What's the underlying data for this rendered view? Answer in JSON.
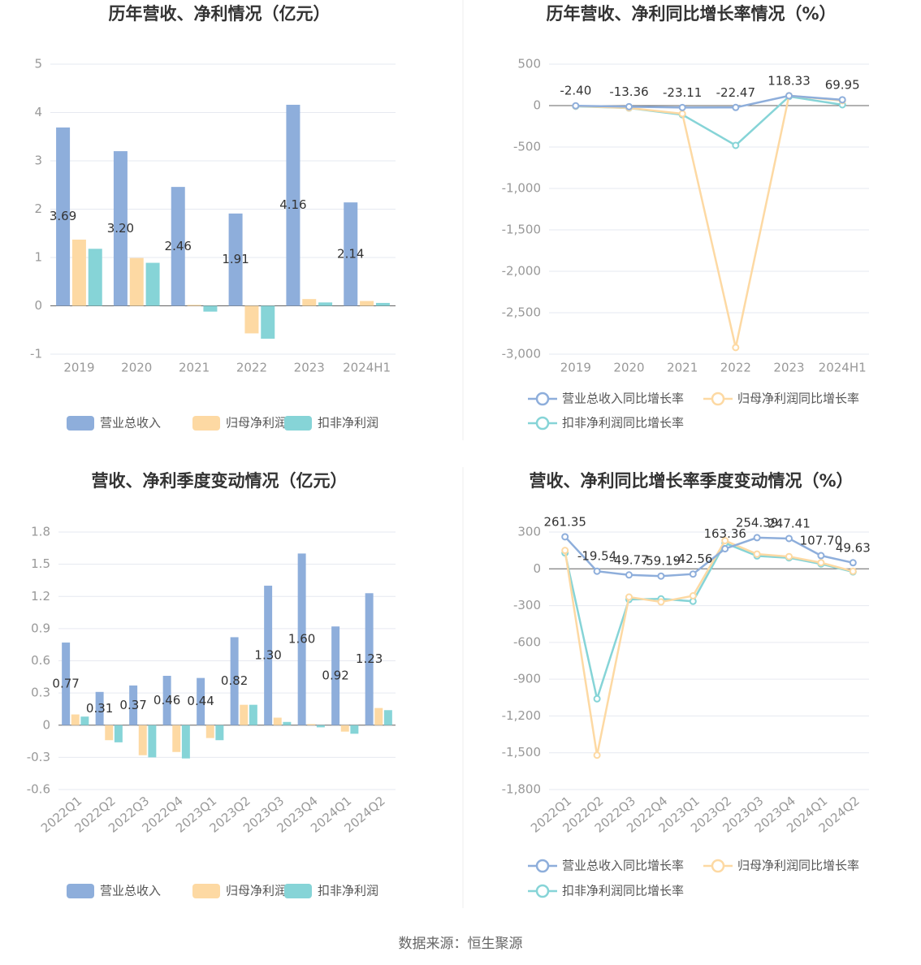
{
  "chart_data": [
    {
      "type": "bar",
      "title": "历年营收、净利情况（亿元）",
      "categories": [
        "2019",
        "2020",
        "2021",
        "2022",
        "2023",
        "2024H1"
      ],
      "series": [
        {
          "name": "营业总收入",
          "color": "#8eaedb",
          "values": [
            3.69,
            3.2,
            2.46,
            1.91,
            4.16,
            2.14
          ],
          "value_labels": [
            "3.69",
            "3.20",
            "2.46",
            "1.91",
            "4.16",
            "2.14"
          ]
        },
        {
          "name": "归母净利润",
          "color": "#fdd9a3",
          "values": [
            1.37,
            0.99,
            0.02,
            -0.57,
            0.14,
            0.1
          ]
        },
        {
          "name": "扣非净利润",
          "color": "#86d4d7",
          "values": [
            1.18,
            0.89,
            -0.12,
            -0.68,
            0.07,
            0.06
          ]
        }
      ],
      "ylim": [
        -1,
        5
      ],
      "yticks": [
        -1,
        0,
        1,
        2,
        3,
        4,
        5
      ],
      "grid": true
    },
    {
      "type": "line",
      "title": "历年营收、净利同比增长率情况（%）",
      "categories": [
        "2019",
        "2020",
        "2021",
        "2022",
        "2023",
        "2024H1"
      ],
      "series": [
        {
          "name": "营业总收入同比增长率",
          "color": "#8eaedb",
          "values": [
            -2.4,
            -13.36,
            -23.11,
            -22.47,
            118.33,
            69.95
          ],
          "value_labels": [
            "-2.40",
            "-13.36",
            "-23.11",
            "-22.47",
            "118.33",
            "69.95"
          ]
        },
        {
          "name": "归母净利润同比增长率",
          "color": "#fdd9a3",
          "values": [
            -5,
            -28,
            -98,
            -2920,
            120,
            60
          ]
        },
        {
          "name": "扣非净利润同比增长率",
          "color": "#86d4d7",
          "values": [
            -8,
            -30,
            -110,
            -480,
            110,
            10
          ]
        }
      ],
      "ylim": [
        -3000,
        500
      ],
      "yticks": [
        {
          "value": -3000,
          "label": "-3,000"
        },
        {
          "value": -2500,
          "label": "-2,500"
        },
        {
          "value": -2000,
          "label": "-2,000"
        },
        {
          "value": -1500,
          "label": "-1,500"
        },
        {
          "value": -1000,
          "label": "-1,000"
        },
        -500,
        0,
        500
      ],
      "grid": true
    },
    {
      "type": "bar",
      "title": "营收、净利季度变动情况（亿元）",
      "categories": [
        "2022Q1",
        "2022Q2",
        "2022Q3",
        "2022Q4",
        "2023Q1",
        "2023Q2",
        "2023Q3",
        "2023Q4",
        "2024Q1",
        "2024Q2"
      ],
      "series": [
        {
          "name": "营业总收入",
          "color": "#8eaedb",
          "values": [
            0.77,
            0.31,
            0.37,
            0.46,
            0.44,
            0.82,
            1.3,
            1.6,
            0.92,
            1.23
          ],
          "value_labels": [
            "0.77",
            "0.31",
            "0.37",
            "0.46",
            "0.44",
            "0.82",
            "1.30",
            "1.60",
            "0.92",
            "1.23"
          ]
        },
        {
          "name": "归母净利润",
          "color": "#fdd9a3",
          "values": [
            0.1,
            -0.14,
            -0.28,
            -0.25,
            -0.12,
            0.19,
            0.07,
            0.01,
            -0.06,
            0.16
          ]
        },
        {
          "name": "扣非净利润",
          "color": "#86d4d7",
          "values": [
            0.08,
            -0.16,
            -0.3,
            -0.31,
            -0.14,
            0.19,
            0.03,
            -0.02,
            -0.08,
            0.14
          ]
        }
      ],
      "ylim": [
        -0.6,
        1.8
      ],
      "yticks": [
        -0.6,
        -0.3,
        0,
        0.3,
        0.6,
        0.9,
        1.2,
        1.5,
        1.8
      ],
      "grid": true
    },
    {
      "type": "line",
      "title": "营收、净利同比增长率季度变动情况（%）",
      "categories": [
        "2022Q1",
        "2022Q2",
        "2022Q3",
        "2022Q4",
        "2023Q1",
        "2023Q2",
        "2023Q3",
        "2023Q4",
        "2024Q1",
        "2024Q2"
      ],
      "series": [
        {
          "name": "营业总收入同比增长率",
          "color": "#8eaedb",
          "values": [
            261.35,
            -19.54,
            -49.77,
            -59.19,
            -42.56,
            163.36,
            254.39,
            247.41,
            107.7,
            49.63
          ],
          "value_labels": [
            "261.35",
            "-19.54",
            "-49.77",
            "-59.19",
            "-42.56",
            "163.36",
            "254.39",
            "247.41",
            "107.70",
            "49.63"
          ]
        },
        {
          "name": "归母净利润同比增长率",
          "color": "#fdd9a3",
          "values": [
            150,
            -1520,
            -230,
            -270,
            -220,
            230,
            120,
            100,
            50,
            -20
          ]
        },
        {
          "name": "扣非净利润同比增长率",
          "color": "#86d4d7",
          "values": [
            130,
            -1060,
            -250,
            -245,
            -265,
            210,
            105,
            90,
            40,
            -25
          ]
        }
      ],
      "ylim": [
        -1800,
        300
      ],
      "yticks": [
        {
          "value": -1800,
          "label": "-1,800"
        },
        {
          "value": -1500,
          "label": "-1,500"
        },
        {
          "value": -1200,
          "label": "-1,200"
        },
        -900,
        -600,
        -300,
        0,
        300
      ],
      "grid": true
    }
  ],
  "source": "数据来源：恒生聚源"
}
